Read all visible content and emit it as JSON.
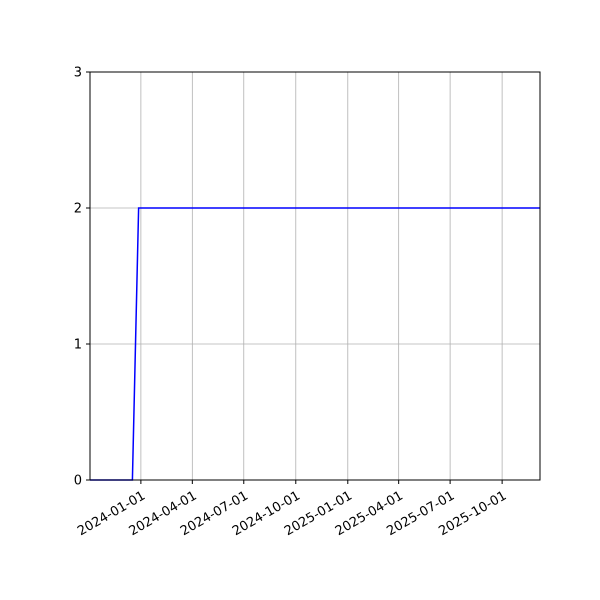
{
  "chart_data": {
    "type": "line",
    "title": "",
    "xlabel": "",
    "ylabel": "",
    "x_type": "date",
    "xlim": [
      "2023-10-03",
      "2025-12-07"
    ],
    "ylim": [
      0,
      3
    ],
    "grid": true,
    "x_ticks": [
      "2024-01-01",
      "2024-04-01",
      "2024-07-01",
      "2024-10-01",
      "2025-01-01",
      "2025-04-01",
      "2025-07-01",
      "2025-10-01"
    ],
    "y_ticks": [
      0,
      1,
      2,
      3
    ],
    "series": [
      {
        "color": "#0000ff",
        "x": [
          "2023-10-03",
          "2023-12-17",
          "2023-12-28",
          "2025-12-07"
        ],
        "y": [
          0,
          0,
          2,
          2
        ]
      }
    ]
  }
}
